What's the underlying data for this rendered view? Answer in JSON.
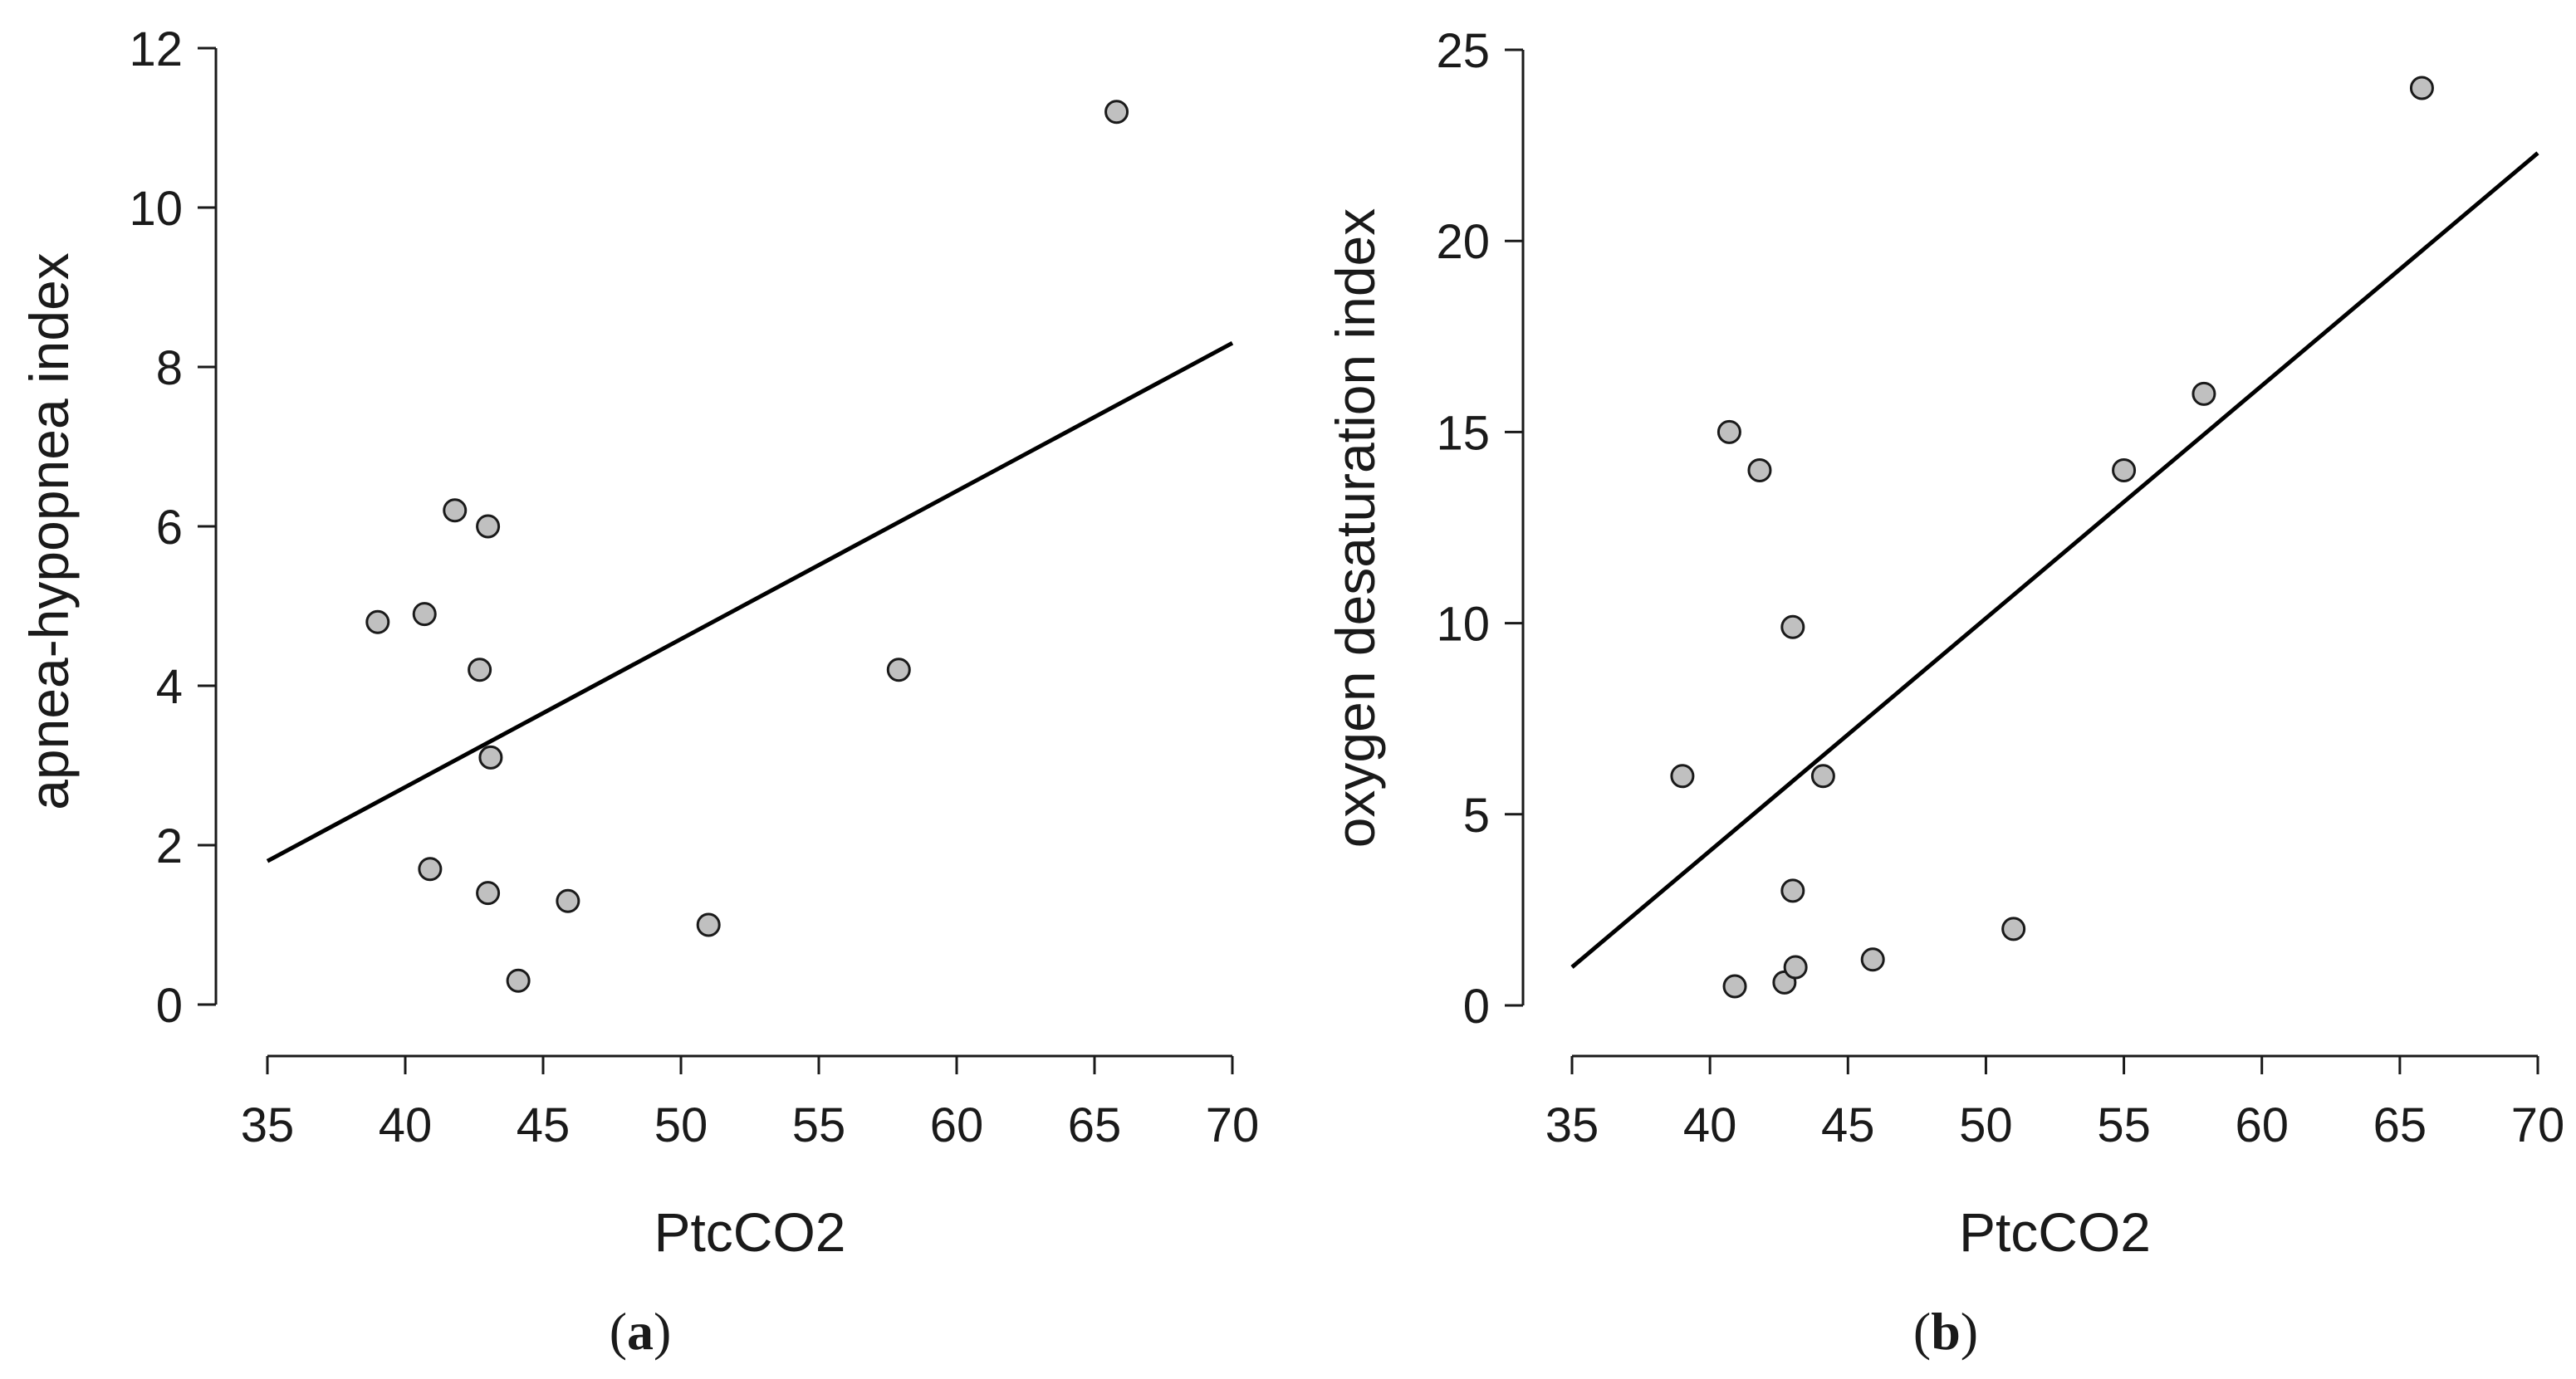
{
  "chart_data": [
    {
      "type": "scatter",
      "panel_label": "a",
      "xlabel": "PtcCO2",
      "ylabel": "apnea-hypopnea index",
      "xlim": [
        35,
        70
      ],
      "ylim": [
        0,
        12
      ],
      "x_ticks": [
        "35",
        "40",
        "45",
        "50",
        "55",
        "60",
        "65",
        "70"
      ],
      "y_ticks": [
        "0",
        "2",
        "4",
        "6",
        "8",
        "10",
        "12"
      ],
      "grid": false,
      "points": [
        {
          "x": 39.0,
          "y": 4.8
        },
        {
          "x": 40.7,
          "y": 4.9
        },
        {
          "x": 40.9,
          "y": 1.7
        },
        {
          "x": 41.8,
          "y": 6.2
        },
        {
          "x": 42.7,
          "y": 4.2
        },
        {
          "x": 43.0,
          "y": 6.0
        },
        {
          "x": 43.0,
          "y": 1.4
        },
        {
          "x": 43.1,
          "y": 3.1
        },
        {
          "x": 44.1,
          "y": 0.3
        },
        {
          "x": 45.9,
          "y": 1.3
        },
        {
          "x": 51.0,
          "y": 1.0
        },
        {
          "x": 57.9,
          "y": 4.2
        },
        {
          "x": 65.8,
          "y": 11.2
        }
      ],
      "fit_line": {
        "x1": 35,
        "y1": 1.8,
        "x2": 70,
        "y2": 8.3
      }
    },
    {
      "type": "scatter",
      "panel_label": "b",
      "xlabel": "PtcCO2",
      "ylabel": "oxygen desaturation index",
      "xlim": [
        35,
        70
      ],
      "ylim": [
        0,
        25
      ],
      "x_ticks": [
        "35",
        "40",
        "45",
        "50",
        "55",
        "60",
        "65",
        "70"
      ],
      "y_ticks": [
        "0",
        "5",
        "10",
        "15",
        "20",
        "25"
      ],
      "grid": false,
      "points": [
        {
          "x": 39.0,
          "y": 6.0
        },
        {
          "x": 40.7,
          "y": 15.0
        },
        {
          "x": 40.9,
          "y": 0.5
        },
        {
          "x": 41.8,
          "y": 14.0
        },
        {
          "x": 42.7,
          "y": 0.6
        },
        {
          "x": 43.0,
          "y": 9.9
        },
        {
          "x": 43.0,
          "y": 3.0
        },
        {
          "x": 43.1,
          "y": 1.0
        },
        {
          "x": 44.1,
          "y": 6.0
        },
        {
          "x": 45.9,
          "y": 1.2
        },
        {
          "x": 51.0,
          "y": 2.0
        },
        {
          "x": 55.0,
          "y": 14.0
        },
        {
          "x": 57.9,
          "y": 16.0
        },
        {
          "x": 65.8,
          "y": 24.0
        }
      ],
      "fit_line": {
        "x1": 35,
        "y1": 1.0,
        "x2": 70,
        "y2": 22.3
      }
    }
  ]
}
